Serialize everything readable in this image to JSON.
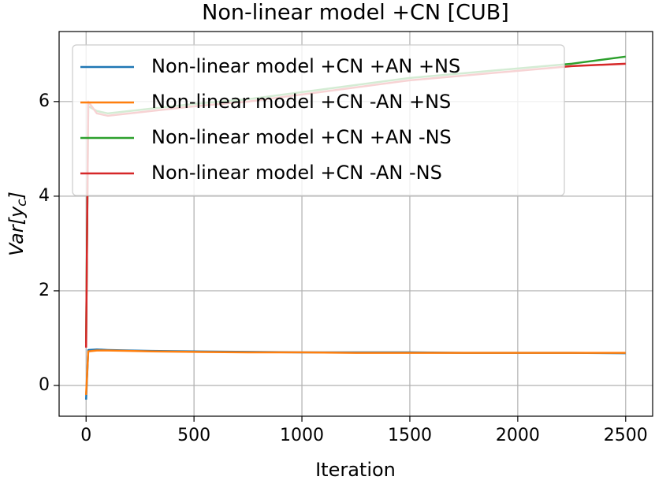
{
  "chart_data": {
    "type": "line",
    "title": "Non-linear model +CN [CUB]",
    "xlabel": "Iteration",
    "ylabel": "Var[y_c]",
    "x": [
      0,
      10,
      50,
      100,
      200,
      300,
      500,
      750,
      1000,
      1250,
      1500,
      1750,
      2000,
      2250,
      2500
    ],
    "series": [
      {
        "name": "Non-linear model +CN +AN +NS",
        "color": "#1f77b4",
        "values": [
          -0.3,
          0.75,
          0.76,
          0.75,
          0.74,
          0.73,
          0.72,
          0.71,
          0.7,
          0.7,
          0.7,
          0.69,
          0.69,
          0.69,
          0.68
        ]
      },
      {
        "name": "Non-linear model +CN -AN +NS",
        "color": "#ff7f0e",
        "values": [
          -0.2,
          0.72,
          0.74,
          0.74,
          0.73,
          0.72,
          0.71,
          0.7,
          0.7,
          0.69,
          0.69,
          0.69,
          0.69,
          0.69,
          0.69
        ]
      },
      {
        "name": "Non-linear model +CN +AN -NS",
        "color": "#2ca02c",
        "values": [
          0.9,
          5.9,
          5.8,
          5.75,
          5.8,
          5.85,
          5.95,
          6.05,
          6.2,
          6.35,
          6.5,
          6.6,
          6.7,
          6.8,
          6.95
        ]
      },
      {
        "name": "Non-linear model +CN -AN -NS",
        "color": "#d62728",
        "values": [
          0.8,
          6.0,
          5.75,
          5.7,
          5.75,
          5.8,
          5.9,
          6.0,
          6.15,
          6.3,
          6.45,
          6.55,
          6.65,
          6.75,
          6.8
        ]
      }
    ],
    "xlim": [
      -125,
      2625
    ],
    "ylim": [
      -0.65,
      7.48
    ],
    "xticks": [
      0,
      500,
      1000,
      1500,
      2000,
      2500
    ],
    "yticks": [
      0,
      2,
      4,
      6
    ],
    "grid": true,
    "legend": "upper-left"
  }
}
